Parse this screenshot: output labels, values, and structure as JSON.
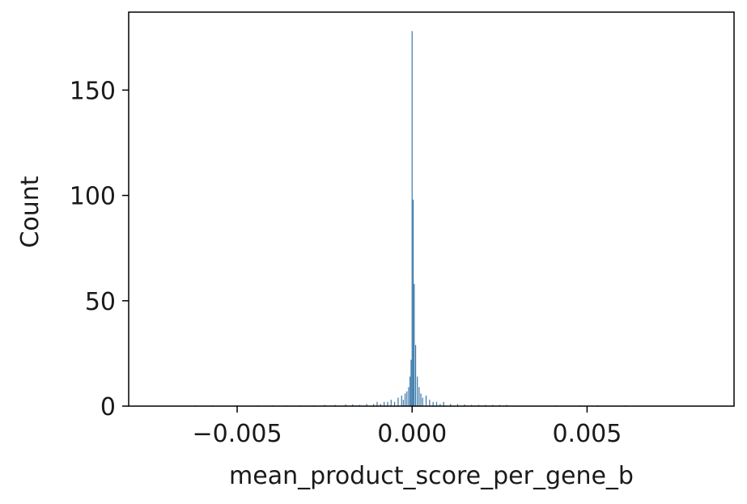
{
  "chart_data": {
    "type": "bar",
    "title": "",
    "xlabel": "mean_product_score_per_gene_b",
    "ylabel": "Count",
    "xlim": [
      -0.0081,
      0.0092
    ],
    "ylim": [
      0,
      187
    ],
    "xticks": [
      -0.005,
      0.0,
      0.005
    ],
    "xtick_labels": [
      "−0.005",
      "0.000",
      "0.005"
    ],
    "yticks": [
      0,
      50,
      100,
      150
    ],
    "ytick_labels": [
      "0",
      "50",
      "100",
      "150"
    ],
    "grid": false,
    "legend": "none",
    "bar_color": "#3a78a8",
    "bins": [
      {
        "x": -0.0062,
        "count": 0.4
      },
      {
        "x": -0.0057,
        "count": 0.4
      },
      {
        "x": -0.005,
        "count": 0.4
      },
      {
        "x": -0.0044,
        "count": 0.4
      },
      {
        "x": -0.004,
        "count": 0.4
      },
      {
        "x": -0.0036,
        "count": 0.4
      },
      {
        "x": -0.0032,
        "count": 0.4
      },
      {
        "x": -0.0028,
        "count": 0.4
      },
      {
        "x": -0.0025,
        "count": 0.6
      },
      {
        "x": -0.0022,
        "count": 0.6
      },
      {
        "x": -0.0019,
        "count": 0.8
      },
      {
        "x": -0.0017,
        "count": 0.8
      },
      {
        "x": -0.0015,
        "count": 0.6
      },
      {
        "x": -0.0013,
        "count": 1
      },
      {
        "x": -0.0011,
        "count": 1
      },
      {
        "x": -0.001,
        "count": 2
      },
      {
        "x": -0.0009,
        "count": 1
      },
      {
        "x": -0.0008,
        "count": 2
      },
      {
        "x": -0.0007,
        "count": 2
      },
      {
        "x": -0.0006,
        "count": 3
      },
      {
        "x": -0.0005,
        "count": 2
      },
      {
        "x": -0.0004,
        "count": 4
      },
      {
        "x": -0.0003,
        "count": 5
      },
      {
        "x": -0.00025,
        "count": 3
      },
      {
        "x": -0.0002,
        "count": 6
      },
      {
        "x": -0.00015,
        "count": 7
      },
      {
        "x": -0.0001,
        "count": 9
      },
      {
        "x": -6e-05,
        "count": 14
      },
      {
        "x": -3e-05,
        "count": 22
      },
      {
        "x": 0.0,
        "count": 178
      },
      {
        "x": 3e-05,
        "count": 98
      },
      {
        "x": 6e-05,
        "count": 58
      },
      {
        "x": 0.0001,
        "count": 29
      },
      {
        "x": 0.00015,
        "count": 14
      },
      {
        "x": 0.0002,
        "count": 9
      },
      {
        "x": 0.00025,
        "count": 6
      },
      {
        "x": 0.0003,
        "count": 4
      },
      {
        "x": 0.0004,
        "count": 5
      },
      {
        "x": 0.0005,
        "count": 3
      },
      {
        "x": 0.0006,
        "count": 2
      },
      {
        "x": 0.0007,
        "count": 2
      },
      {
        "x": 0.0008,
        "count": 1
      },
      {
        "x": 0.0009,
        "count": 2
      },
      {
        "x": 0.0011,
        "count": 1
      },
      {
        "x": 0.0013,
        "count": 1
      },
      {
        "x": 0.0015,
        "count": 0.8
      },
      {
        "x": 0.0017,
        "count": 0.6
      },
      {
        "x": 0.0019,
        "count": 0.6
      },
      {
        "x": 0.0021,
        "count": 0.6
      },
      {
        "x": 0.0023,
        "count": 0.6
      },
      {
        "x": 0.0025,
        "count": 0.6
      },
      {
        "x": 0.0027,
        "count": 0.6
      },
      {
        "x": 0.0041,
        "count": 0.4
      },
      {
        "x": 0.0048,
        "count": 0.4
      },
      {
        "x": 0.0053,
        "count": 0.4
      },
      {
        "x": 0.0061,
        "count": 0.4
      }
    ]
  }
}
